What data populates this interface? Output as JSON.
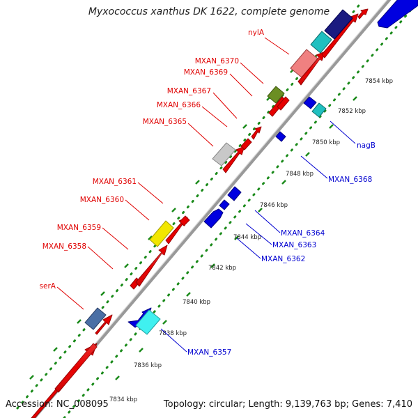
{
  "title": "Myxococcus xanthus DK 1622, complete genome",
  "footer": {
    "accession": "Accession: NC_008095",
    "topology": "Topology: circular; Length: 9,139,763 bp; Genes: 7,410"
  },
  "colors": {
    "forward_label": "#e00000",
    "reverse_label": "#0000d0",
    "backbone": "#999999",
    "dots": "#1a8a1a"
  },
  "ticks": [
    "7834 kbp",
    "7836 kbp",
    "7838 kbp",
    "7840 kbp",
    "7842 kbp",
    "7844 kbp",
    "7846 kbp",
    "7848 kbp",
    "7850 kbp",
    "7852 kbp",
    "7854 kbp"
  ],
  "forward_labels": [
    "nylA",
    "MXAN_6370",
    "MXAN_6369",
    "MXAN_6367",
    "MXAN_6366",
    "MXAN_6365",
    "MXAN_6361",
    "MXAN_6360",
    "MXAN_6359",
    "MXAN_6358",
    "serA"
  ],
  "reverse_labels": [
    "nagB",
    "MXAN_6368",
    "MXAN_6364",
    "MXAN_6363",
    "MXAN_6362",
    "MXAN_6357"
  ]
}
